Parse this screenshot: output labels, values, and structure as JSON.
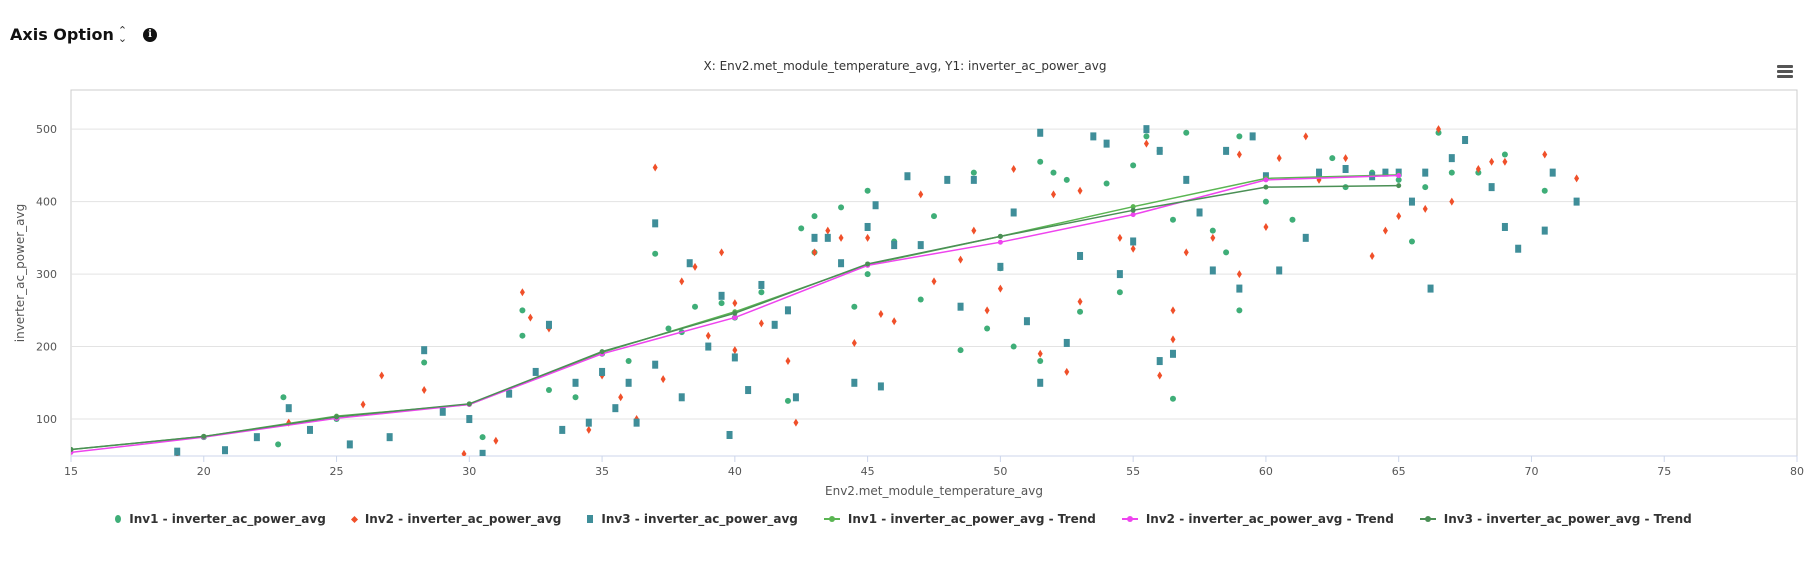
{
  "header": {
    "axis_option_label": "Axis Option",
    "info_icon": "info-circle-icon",
    "sort_icon": "chevron-updown-icon"
  },
  "menu_icon": "hamburger-menu-icon",
  "chart_data": {
    "type": "scatter",
    "title": "X: Env2.met_module_temperature_avg, Y1: inverter_ac_power_avg",
    "xlabel": "Env2.met_module_temperature_avg",
    "ylabel": "inverter_ac_power_avg",
    "xlim": [
      15,
      80
    ],
    "ylim": [
      49,
      554
    ],
    "xticks": [
      15,
      20,
      25,
      30,
      35,
      40,
      45,
      50,
      55,
      60,
      65,
      70,
      75,
      80
    ],
    "yticks": [
      100,
      200,
      300,
      400,
      500
    ],
    "grid": true,
    "legend_position": "bottom",
    "series": [
      {
        "name": "Inv1 - inverter_ac_power_avg",
        "kind": "scatter",
        "marker": "circle",
        "color": "#3fae78",
        "points": [
          [
            23,
            130
          ],
          [
            28.3,
            178
          ],
          [
            32,
            215
          ],
          [
            32,
            250
          ],
          [
            37,
            328
          ],
          [
            38,
            220
          ],
          [
            38.5,
            255
          ],
          [
            39.5,
            260
          ],
          [
            40,
            240
          ],
          [
            42.5,
            363
          ],
          [
            43,
            380
          ],
          [
            43,
            330
          ],
          [
            44,
            392
          ],
          [
            45,
            415
          ],
          [
            45,
            300
          ],
          [
            46,
            345
          ],
          [
            47.5,
            380
          ],
          [
            48.5,
            195
          ],
          [
            49,
            440
          ],
          [
            49.5,
            225
          ],
          [
            50,
            308
          ],
          [
            50.5,
            200
          ],
          [
            51.5,
            455
          ],
          [
            51.5,
            180
          ],
          [
            52,
            440
          ],
          [
            52.5,
            430
          ],
          [
            53,
            248
          ],
          [
            54,
            425
          ],
          [
            54.5,
            275
          ],
          [
            55,
            450
          ],
          [
            55.5,
            490
          ],
          [
            56,
            470
          ],
          [
            56.5,
            128
          ],
          [
            56.5,
            375
          ],
          [
            57,
            495
          ],
          [
            58,
            360
          ],
          [
            58.5,
            330
          ],
          [
            59,
            490
          ],
          [
            59,
            250
          ],
          [
            60,
            400
          ],
          [
            61,
            375
          ],
          [
            62.5,
            460
          ],
          [
            63,
            420
          ],
          [
            64,
            440
          ],
          [
            65,
            430
          ],
          [
            65.5,
            345
          ],
          [
            66,
            420
          ],
          [
            66.5,
            495
          ],
          [
            67,
            440
          ],
          [
            68,
            440
          ],
          [
            69,
            465
          ],
          [
            70.5,
            415
          ],
          [
            35,
            190
          ],
          [
            36,
            180
          ],
          [
            37.5,
            225
          ],
          [
            41,
            275
          ],
          [
            34,
            130
          ],
          [
            33,
            140
          ],
          [
            44.5,
            255
          ],
          [
            47,
            265
          ],
          [
            42,
            125
          ],
          [
            30.5,
            75
          ],
          [
            25,
            100
          ],
          [
            20,
            75
          ],
          [
            22.8,
            65
          ]
        ]
      },
      {
        "name": "Inv2 - inverter_ac_power_avg",
        "kind": "scatter",
        "marker": "diamond",
        "color": "#f0502a",
        "points": [
          [
            19,
            52
          ],
          [
            23.2,
            95
          ],
          [
            26,
            120
          ],
          [
            26.7,
            160
          ],
          [
            28.3,
            140
          ],
          [
            29.8,
            52
          ],
          [
            31,
            70
          ],
          [
            32,
            275
          ],
          [
            32.3,
            240
          ],
          [
            33,
            225
          ],
          [
            34.5,
            85
          ],
          [
            35,
            160
          ],
          [
            36,
            150
          ],
          [
            37,
            447
          ],
          [
            37.3,
            155
          ],
          [
            38,
            290
          ],
          [
            38.5,
            310
          ],
          [
            39.5,
            330
          ],
          [
            40,
            260
          ],
          [
            40,
            195
          ],
          [
            41,
            232
          ],
          [
            42,
            180
          ],
          [
            42.3,
            95
          ],
          [
            43,
            330
          ],
          [
            43.5,
            360
          ],
          [
            44,
            350
          ],
          [
            44.5,
            205
          ],
          [
            45,
            350
          ],
          [
            45.5,
            245
          ],
          [
            46,
            235
          ],
          [
            47,
            410
          ],
          [
            47.5,
            290
          ],
          [
            48.5,
            320
          ],
          [
            49,
            360
          ],
          [
            49.5,
            250
          ],
          [
            50,
            280
          ],
          [
            50.5,
            445
          ],
          [
            51.5,
            190
          ],
          [
            52,
            410
          ],
          [
            52.5,
            165
          ],
          [
            53,
            415
          ],
          [
            53,
            262
          ],
          [
            54,
            480
          ],
          [
            54.5,
            350
          ],
          [
            55,
            335
          ],
          [
            55.5,
            480
          ],
          [
            56,
            160
          ],
          [
            56.5,
            250
          ],
          [
            56.5,
            210
          ],
          [
            57,
            330
          ],
          [
            58,
            350
          ],
          [
            59,
            300
          ],
          [
            59,
            465
          ],
          [
            60,
            365
          ],
          [
            60.5,
            460
          ],
          [
            61.5,
            490
          ],
          [
            62,
            430
          ],
          [
            63,
            460
          ],
          [
            64,
            325
          ],
          [
            64.5,
            360
          ],
          [
            65,
            380
          ],
          [
            66,
            390
          ],
          [
            66.5,
            500
          ],
          [
            67,
            400
          ],
          [
            68,
            445
          ],
          [
            68.5,
            455
          ],
          [
            69,
            455
          ],
          [
            70.5,
            465
          ],
          [
            71.7,
            432
          ],
          [
            39,
            215
          ],
          [
            35.7,
            130
          ],
          [
            36.3,
            100
          ]
        ]
      },
      {
        "name": "Inv3 - inverter_ac_power_avg",
        "kind": "scatter",
        "marker": "square",
        "color": "#3f8e99",
        "points": [
          [
            19,
            55
          ],
          [
            20.8,
            57
          ],
          [
            22,
            75
          ],
          [
            23.2,
            115
          ],
          [
            24,
            85
          ],
          [
            25.5,
            65
          ],
          [
            27,
            75
          ],
          [
            28.3,
            195
          ],
          [
            29,
            110
          ],
          [
            30,
            100
          ],
          [
            30.5,
            52
          ],
          [
            31.5,
            135
          ],
          [
            32.5,
            165
          ],
          [
            33,
            230
          ],
          [
            33.5,
            85
          ],
          [
            34,
            150
          ],
          [
            34.5,
            95
          ],
          [
            35,
            165
          ],
          [
            35.5,
            115
          ],
          [
            36,
            150
          ],
          [
            36.3,
            95
          ],
          [
            37,
            370
          ],
          [
            37,
            175
          ],
          [
            38,
            130
          ],
          [
            38.3,
            315
          ],
          [
            39,
            200
          ],
          [
            39.5,
            270
          ],
          [
            39.8,
            78
          ],
          [
            40,
            185
          ],
          [
            40.5,
            140
          ],
          [
            41,
            285
          ],
          [
            41.5,
            230
          ],
          [
            42,
            250
          ],
          [
            42.3,
            130
          ],
          [
            43,
            350
          ],
          [
            43.5,
            350
          ],
          [
            44,
            315
          ],
          [
            44.5,
            150
          ],
          [
            45,
            365
          ],
          [
            45.3,
            395
          ],
          [
            45.5,
            145
          ],
          [
            46,
            340
          ],
          [
            46.5,
            435
          ],
          [
            47,
            340
          ],
          [
            48,
            430
          ],
          [
            48.5,
            255
          ],
          [
            49,
            430
          ],
          [
            50,
            310
          ],
          [
            50.5,
            385
          ],
          [
            51,
            235
          ],
          [
            51.5,
            495
          ],
          [
            51.5,
            150
          ],
          [
            52.5,
            205
          ],
          [
            53,
            325
          ],
          [
            53.5,
            490
          ],
          [
            54,
            480
          ],
          [
            54.5,
            300
          ],
          [
            55,
            345
          ],
          [
            55.5,
            500
          ],
          [
            56,
            180
          ],
          [
            56,
            470
          ],
          [
            56.5,
            190
          ],
          [
            57,
            430
          ],
          [
            57.5,
            385
          ],
          [
            58,
            305
          ],
          [
            58.5,
            470
          ],
          [
            59,
            280
          ],
          [
            59.5,
            490
          ],
          [
            60,
            435
          ],
          [
            60.5,
            305
          ],
          [
            61.5,
            350
          ],
          [
            62,
            440
          ],
          [
            63,
            445
          ],
          [
            64,
            435
          ],
          [
            64.5,
            440
          ],
          [
            65,
            440
          ],
          [
            65.5,
            400
          ],
          [
            66,
            440
          ],
          [
            66.2,
            280
          ],
          [
            67,
            460
          ],
          [
            67.5,
            485
          ],
          [
            68.5,
            420
          ],
          [
            69,
            365
          ],
          [
            69.5,
            335
          ],
          [
            70.5,
            360
          ],
          [
            71.7,
            400
          ],
          [
            70.8,
            440
          ]
        ]
      },
      {
        "name": "Inv1 - inverter_ac_power_avg - Trend",
        "kind": "line",
        "color": "#5ab552",
        "points": [
          [
            15,
            58
          ],
          [
            20,
            76
          ],
          [
            25,
            104
          ],
          [
            30,
            120
          ],
          [
            35,
            192
          ],
          [
            40,
            248
          ],
          [
            45,
            313
          ],
          [
            50,
            352
          ],
          [
            55,
            393
          ],
          [
            60,
            432
          ],
          [
            65,
            437
          ]
        ]
      },
      {
        "name": "Inv2 - inverter_ac_power_avg - Trend",
        "kind": "line",
        "color": "#ee44ee",
        "points": [
          [
            15,
            54
          ],
          [
            20,
            75
          ],
          [
            25,
            101
          ],
          [
            30,
            120
          ],
          [
            35,
            190
          ],
          [
            40,
            240
          ],
          [
            45,
            312
          ],
          [
            50,
            344
          ],
          [
            55,
            382
          ],
          [
            60,
            430
          ],
          [
            65,
            436
          ]
        ]
      },
      {
        "name": "Inv3 - inverter_ac_power_avg - Trend",
        "kind": "line",
        "color": "#4a8f55",
        "points": [
          [
            15,
            58
          ],
          [
            20,
            76
          ],
          [
            25,
            103
          ],
          [
            30,
            121
          ],
          [
            35,
            193
          ],
          [
            40,
            246
          ],
          [
            45,
            314
          ],
          [
            50,
            352
          ],
          [
            55,
            388
          ],
          [
            60,
            420
          ],
          [
            65,
            422
          ]
        ]
      }
    ]
  }
}
